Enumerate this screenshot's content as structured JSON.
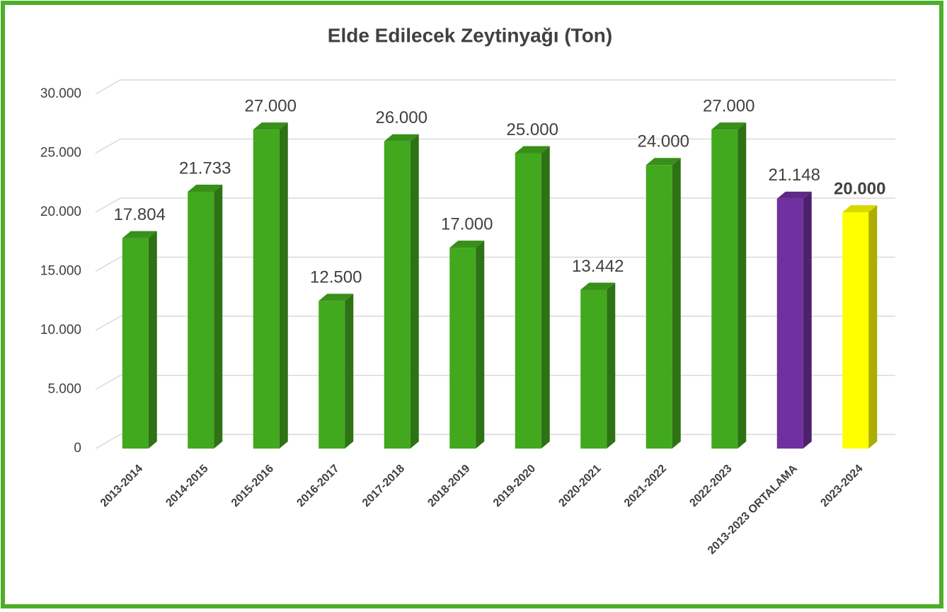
{
  "chart_data": {
    "type": "bar3d",
    "title": "Elde Edilecek Zeytinyağı (Ton)",
    "categories": [
      "2013-2014",
      "2014-2015",
      "2015-2016",
      "2016-2017",
      "2017-2018",
      "2018-2019",
      "2019-2020",
      "2020-2021",
      "2021-2022",
      "2022-2023",
      "2013-2023 ORTALAMA",
      "2023-2024"
    ],
    "values": [
      17804,
      21733,
      27000,
      12500,
      26000,
      17000,
      25000,
      13442,
      24000,
      27000,
      21148,
      20000
    ],
    "value_labels": [
      "17.804",
      "21.733",
      "27.000",
      "12.500",
      "26.000",
      "17.000",
      "25.000",
      "13.442",
      "24.000",
      "27.000",
      "21.148",
      "20.000"
    ],
    "colors": [
      "#42a81e",
      "#42a81e",
      "#42a81e",
      "#42a81e",
      "#42a81e",
      "#42a81e",
      "#42a81e",
      "#42a81e",
      "#42a81e",
      "#42a81e",
      "#7030a0",
      "#ffff00"
    ],
    "ylim": [
      0,
      30000
    ],
    "yticks": [
      0,
      {
        "value": 5000,
        "label": "5.000"
      },
      {
        "value": 10000,
        "label": "10.000"
      },
      {
        "value": 15000,
        "label": "15.000"
      },
      {
        "value": 20000,
        "label": "20.000"
      },
      {
        "value": 25000,
        "label": "25.000"
      },
      {
        "value": 30000,
        "label": "30.000"
      }
    ],
    "grid": true
  }
}
